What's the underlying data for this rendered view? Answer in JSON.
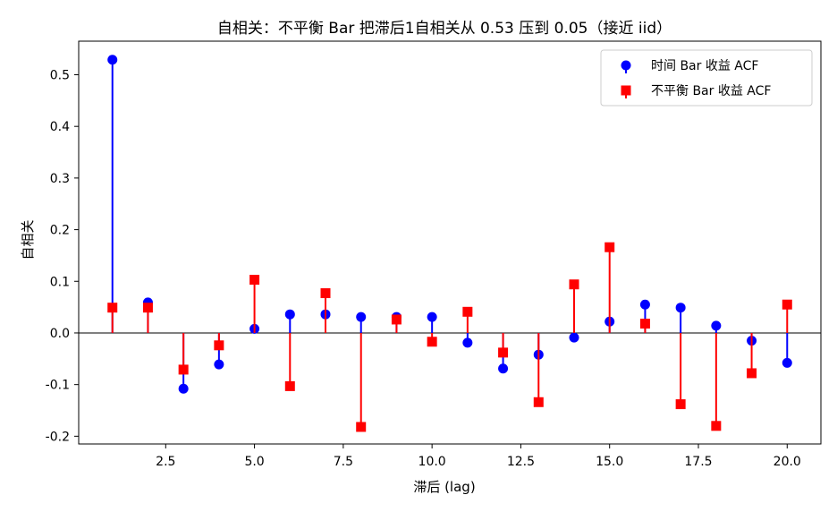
{
  "chart_data": {
    "type": "stem",
    "title": "自相关：不平衡 Bar 把滞后1自相关从 0.53 压到 0.05（接近 iid）",
    "xlabel": "滞后 (lag)",
    "ylabel": "自相关",
    "xlim": [
      0.05,
      20.95
    ],
    "ylim": [
      -0.215,
      0.565
    ],
    "x_ticks": [
      2.5,
      5.0,
      7.5,
      10.0,
      12.5,
      15.0,
      17.5,
      20.0
    ],
    "x_tick_labels": [
      "2.5",
      "5.0",
      "7.5",
      "10.0",
      "12.5",
      "15.0",
      "17.5",
      "20.0"
    ],
    "y_ticks": [
      -0.2,
      -0.1,
      0.0,
      0.1,
      0.2,
      0.3,
      0.4,
      0.5
    ],
    "y_tick_labels": [
      "-0.2",
      "-0.1",
      "0.0",
      "0.1",
      "0.2",
      "0.3",
      "0.4",
      "0.5"
    ],
    "baseline": 0,
    "grid": false,
    "legend_position": "top-right",
    "x": [
      1,
      2,
      3,
      4,
      5,
      6,
      7,
      8,
      9,
      10,
      11,
      12,
      13,
      14,
      15,
      16,
      17,
      18,
      19,
      20
    ],
    "series": [
      {
        "name": "时间 Bar 收益 ACF",
        "color": "#0000ff",
        "marker": "circle",
        "values": [
          0.529,
          0.059,
          -0.108,
          -0.061,
          0.008,
          0.036,
          0.036,
          0.031,
          0.031,
          0.031,
          -0.019,
          -0.069,
          -0.042,
          -0.009,
          0.022,
          0.055,
          0.049,
          0.014,
          -0.015,
          -0.058
        ]
      },
      {
        "name": "不平衡 Bar 收益 ACF",
        "color": "#ff0000",
        "marker": "square",
        "values": [
          0.049,
          0.049,
          -0.071,
          -0.024,
          0.103,
          -0.103,
          0.077,
          -0.182,
          0.026,
          -0.017,
          0.041,
          -0.038,
          -0.134,
          0.094,
          0.166,
          0.018,
          -0.138,
          -0.18,
          -0.078,
          0.055
        ]
      }
    ]
  }
}
